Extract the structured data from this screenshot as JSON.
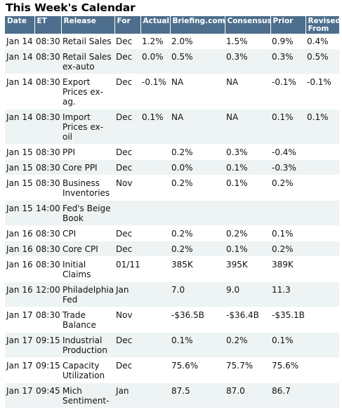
{
  "title": "This Week's Calendar",
  "columns": [
    "Date",
    "ET",
    "Release",
    "For",
    "Actual",
    "Briefing.com",
    "Consensus",
    "Prior",
    "Revised From"
  ],
  "rows": [
    {
      "date": "Jan 14",
      "et": "08:30",
      "release": "Retail Sales",
      "for": "Dec",
      "actual": "1.2%",
      "briefing": "2.0%",
      "consensus": "1.5%",
      "prior": "0.9%",
      "revised": "0.4%"
    },
    {
      "date": "Jan 14",
      "et": "08:30",
      "release": "Retail Sales ex-auto",
      "for": "Dec",
      "actual": "0.0%",
      "briefing": "0.5%",
      "consensus": "0.3%",
      "prior": "0.3%",
      "revised": "0.5%"
    },
    {
      "date": "Jan 14",
      "et": "08:30",
      "release": "Export Prices ex-ag.",
      "for": "Dec",
      "actual": "-0.1%",
      "briefing": "NA",
      "consensus": "NA",
      "prior": "-0.1%",
      "revised": "-0.1%"
    },
    {
      "date": "Jan 14",
      "et": "08:30",
      "release": "Import Prices ex-oil",
      "for": "Dec",
      "actual": "0.1%",
      "briefing": "NA",
      "consensus": "NA",
      "prior": "0.1%",
      "revised": "0.1%"
    },
    {
      "date": "Jan 15",
      "et": "08:30",
      "release": "PPI",
      "for": "Dec",
      "actual": "",
      "briefing": "0.2%",
      "consensus": "0.3%",
      "prior": "-0.4%",
      "revised": ""
    },
    {
      "date": "Jan 15",
      "et": "08:30",
      "release": "Core PPI",
      "for": "Dec",
      "actual": "",
      "briefing": "0.0%",
      "consensus": "0.1%",
      "prior": "-0.3%",
      "revised": ""
    },
    {
      "date": "Jan 15",
      "et": "08:30",
      "release": "Business Inventories",
      "for": "Nov",
      "actual": "",
      "briefing": "0.2%",
      "consensus": "0.1%",
      "prior": "0.2%",
      "revised": ""
    },
    {
      "date": "Jan 15",
      "et": "14:00",
      "release": "Fed's Beige Book",
      "for": "",
      "actual": "",
      "briefing": "",
      "consensus": "",
      "prior": "",
      "revised": ""
    },
    {
      "date": "Jan 16",
      "et": "08:30",
      "release": "CPI",
      "for": "Dec",
      "actual": "",
      "briefing": "0.2%",
      "consensus": "0.2%",
      "prior": "0.1%",
      "revised": ""
    },
    {
      "date": "Jan 16",
      "et": "08:30",
      "release": "Core CPI",
      "for": "Dec",
      "actual": "",
      "briefing": "0.2%",
      "consensus": "0.1%",
      "prior": "0.2%",
      "revised": ""
    },
    {
      "date": "Jan 16",
      "et": "08:30",
      "release": "Initial Claims",
      "for": "01/11",
      "actual": "",
      "briefing": "385K",
      "consensus": "395K",
      "prior": "389K",
      "revised": ""
    },
    {
      "date": "Jan 16",
      "et": "12:00",
      "release": "Philadelphia Fed",
      "for": "Jan",
      "actual": "",
      "briefing": "7.0",
      "consensus": "9.0",
      "prior": "11.3",
      "revised": ""
    },
    {
      "date": "Jan 17",
      "et": "08:30",
      "release": "Trade Balance",
      "for": "Nov",
      "actual": "",
      "briefing": "-$36.5B",
      "consensus": "-$36.4B",
      "prior": "-$35.1B",
      "revised": ""
    },
    {
      "date": "Jan 17",
      "et": "09:15",
      "release": "Industrial Production",
      "for": "Dec",
      "actual": "",
      "briefing": "0.1%",
      "consensus": "0.2%",
      "prior": "0.1%",
      "revised": ""
    },
    {
      "date": "Jan 17",
      "et": "09:15",
      "release": "Capacity Utilization",
      "for": "Dec",
      "actual": "",
      "briefing": "75.6%",
      "consensus": "75.7%",
      "prior": "75.6%",
      "revised": ""
    },
    {
      "date": "Jan 17",
      "et": "09:45",
      "release": "Mich Sentiment-",
      "for": "Jan",
      "actual": "",
      "briefing": "87.5",
      "consensus": "87.0",
      "prior": "86.7",
      "revised": ""
    }
  ],
  "colors": {
    "header_bg": "#4d6e8c",
    "header_text": "#ffffff",
    "row_alt_bg": "#eef3f3"
  }
}
